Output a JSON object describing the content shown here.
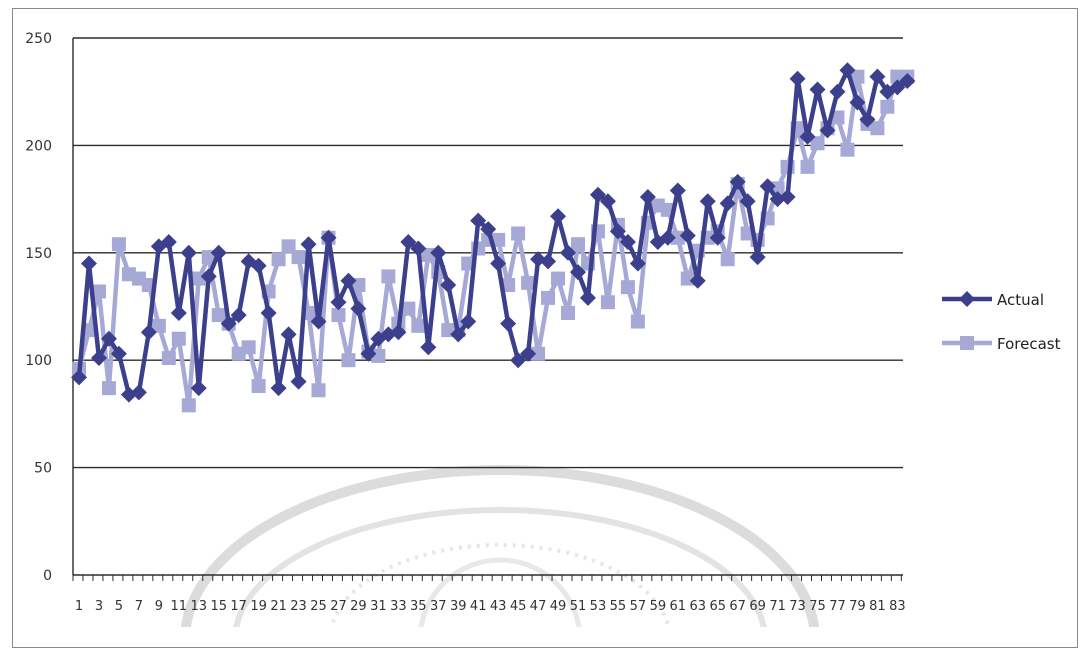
{
  "chart_data": {
    "type": "line",
    "title": "",
    "xlabel": "",
    "ylabel": "",
    "ylim": [
      0,
      250
    ],
    "yticks": [
      0,
      50,
      100,
      150,
      200,
      250
    ],
    "xlim": [
      1,
      84
    ],
    "xtick_labels": [
      "1",
      "3",
      "5",
      "7",
      "9",
      "11",
      "13",
      "15",
      "17",
      "19",
      "21",
      "23",
      "25",
      "27",
      "29",
      "31",
      "33",
      "35",
      "37",
      "39",
      "41",
      "43",
      "45",
      "47",
      "49",
      "51",
      "53",
      "55",
      "57",
      "59",
      "61",
      "63",
      "65",
      "67",
      "69",
      "71",
      "73",
      "75",
      "77",
      "79",
      "81",
      "83"
    ],
    "grid": true,
    "legend_position": "right",
    "x": [
      1,
      2,
      3,
      4,
      5,
      6,
      7,
      8,
      9,
      10,
      11,
      12,
      13,
      14,
      15,
      16,
      17,
      18,
      19,
      20,
      21,
      22,
      23,
      24,
      25,
      26,
      27,
      28,
      29,
      30,
      31,
      32,
      33,
      34,
      35,
      36,
      37,
      38,
      39,
      40,
      41,
      42,
      43,
      44,
      45,
      46,
      47,
      48,
      49,
      50,
      51,
      52,
      53,
      54,
      55,
      56,
      57,
      58,
      59,
      60,
      61,
      62,
      63,
      64,
      65,
      66,
      67,
      68,
      69,
      70,
      71,
      72,
      73,
      74,
      75,
      76,
      77,
      78,
      79,
      80,
      81,
      82,
      83,
      84
    ],
    "series": [
      {
        "name": "Actual",
        "color": "#3c3f8c",
        "marker": "diamond",
        "values": [
          92,
          145,
          101,
          110,
          103,
          84,
          85,
          113,
          153,
          155,
          122,
          150,
          87,
          139,
          150,
          117,
          121,
          146,
          144,
          122,
          87,
          112,
          90,
          154,
          118,
          157,
          127,
          137,
          124,
          103,
          110,
          112,
          113,
          155,
          152,
          106,
          150,
          135,
          112,
          118,
          165,
          161,
          145,
          117,
          100,
          103,
          147,
          146,
          167,
          150,
          141,
          129,
          177,
          174,
          160,
          155,
          145,
          176,
          155,
          157,
          179,
          158,
          137,
          174,
          157,
          173,
          183,
          174,
          148,
          181,
          175,
          176,
          231,
          204,
          226,
          207,
          225,
          235,
          220,
          212,
          232,
          225,
          227,
          230
        ]
      },
      {
        "name": "Forecast",
        "color": "#a6a8d6",
        "marker": "square",
        "values": [
          96,
          114,
          132,
          87,
          154,
          140,
          138,
          135,
          116,
          101,
          110,
          79,
          138,
          148,
          121,
          117,
          103,
          106,
          88,
          132,
          147,
          153,
          148,
          122,
          86,
          157,
          121,
          100,
          135,
          104,
          102,
          139,
          117,
          124,
          116,
          149,
          141,
          114,
          114,
          145,
          152,
          156,
          156,
          135,
          159,
          136,
          103,
          129,
          138,
          122,
          154,
          145,
          160,
          127,
          163,
          134,
          118,
          164,
          172,
          170,
          157,
          138,
          151,
          157,
          160,
          147,
          182,
          159,
          156,
          166,
          180,
          190,
          208,
          190,
          201,
          208,
          213,
          198,
          232,
          210,
          208,
          218,
          232,
          232
        ]
      }
    ]
  },
  "colors": {
    "actual": "#3c3f8c",
    "forecast": "#a6a8d6",
    "gridline": "#2b2b2b",
    "axis_text": "#333333",
    "frame_border": "#8a8a8a",
    "watermark": "#d9d9d9"
  }
}
